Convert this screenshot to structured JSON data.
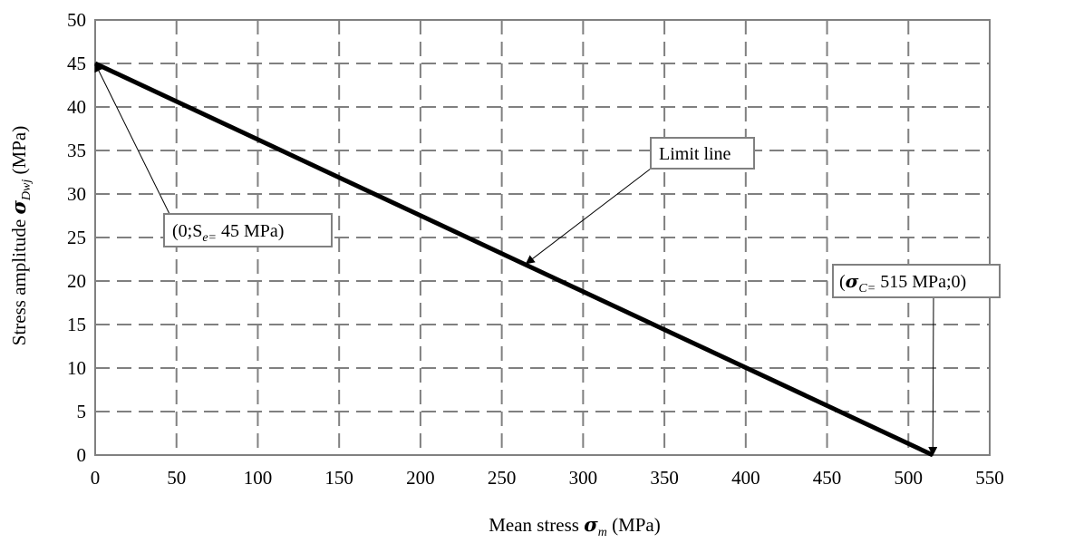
{
  "chart_data": {
    "type": "line",
    "series": [
      {
        "x": [
          0,
          515
        ],
        "y": [
          45,
          0
        ],
        "color": "#000000"
      }
    ],
    "xlim": [
      0,
      550
    ],
    "ylim": [
      0,
      50
    ],
    "xticks": [
      0,
      50,
      100,
      150,
      200,
      250,
      300,
      350,
      400,
      450,
      500,
      550
    ],
    "yticks": [
      0,
      5,
      10,
      15,
      20,
      25,
      30,
      35,
      40,
      45,
      50
    ],
    "grid": true,
    "grid_style": "dashed",
    "xlabel": {
      "prefix": "Mean stress ",
      "symbol": "σ",
      "sub": "m",
      "suffix": "  (MPa)"
    },
    "ylabel": {
      "prefix": "Stress amplitude ",
      "symbol": "σ",
      "sub": "Dwj",
      "suffix": "  (MPa)"
    },
    "annotations": [
      {
        "id": "se",
        "open": "(0;S",
        "sub": "e=",
        "close": "  45 MPa)",
        "target": [
          0,
          45
        ]
      },
      {
        "id": "limit",
        "text": "Limit line",
        "target": [
          265,
          22
        ]
      },
      {
        "id": "sc",
        "open": "(",
        "symbol": "σ",
        "sub": "C=",
        "close": "  515 MPa;0)",
        "target": [
          515,
          0
        ]
      }
    ]
  }
}
